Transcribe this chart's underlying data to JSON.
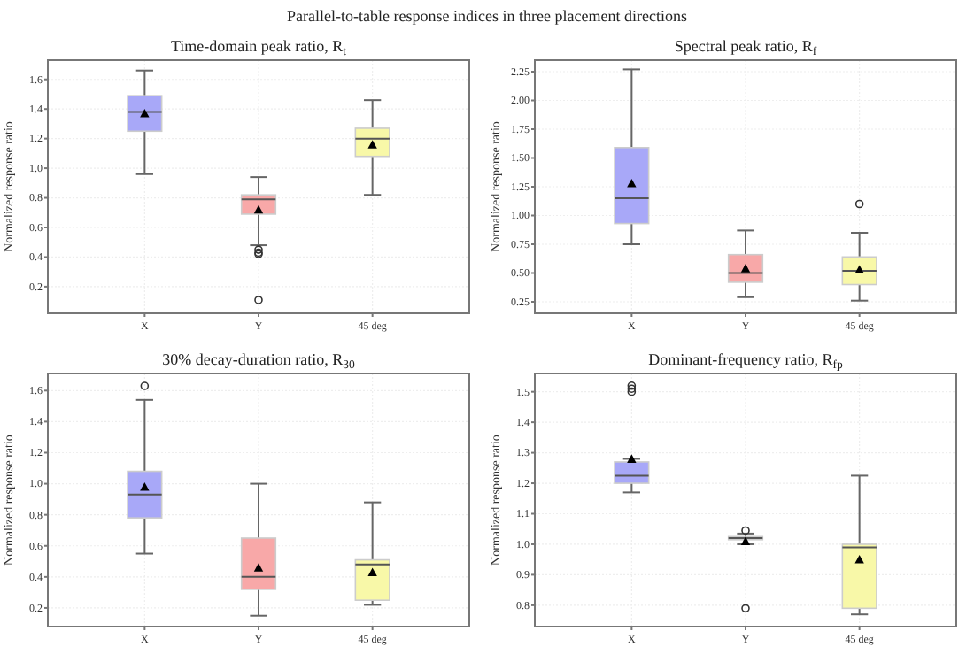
{
  "chart_data": [
    {
      "type": "box",
      "title": "Time-domain peak ratio, R$_{t}$",
      "annotations": [
        "Parallel-to-table response indices in three placement directions"
      ],
      "ylabel": "Normalized response ratio",
      "categories": [
        "X",
        "Y",
        "45 deg"
      ],
      "colors": [
        "#a8a8f8",
        "#f8a8a8",
        "#f8f8a8"
      ],
      "grid": true,
      "ylim": [
        0.02,
        1.73
      ],
      "yticks": [
        0.2,
        0.4,
        0.6,
        0.8,
        {
          "value": 1,
          "label": "1.0"
        },
        1.2,
        1.4,
        1.6
      ],
      "boxes": [
        {
          "low": 0.96,
          "q1": 1.25,
          "median": 1.38,
          "q3": 1.49,
          "high": 1.66,
          "mean": 1.37
        },
        {
          "low": 0.48,
          "q1": 0.69,
          "median": 0.79,
          "q3": 0.82,
          "high": 0.94,
          "mean": 0.72,
          "outliers": [
            0.45,
            0.43,
            0.42,
            0.11
          ]
        },
        {
          "low": 0.82,
          "q1": 1.08,
          "median": 1.2,
          "q3": 1.27,
          "high": 1.46,
          "mean": 1.16
        }
      ]
    },
    {
      "type": "box",
      "title": "Spectral peak ratio, R$_{f}$",
      "ylabel": "Normalized response ratio",
      "categories": [
        "X",
        "Y",
        "45 deg"
      ],
      "colors": [
        "#a8a8f8",
        "#f8a8a8",
        "#f8f8a8"
      ],
      "grid": true,
      "ylim": [
        0.15,
        2.35
      ],
      "yticks": [
        0.25,
        {
          "value": 0.5,
          "label": "0.50"
        },
        0.75,
        {
          "value": 1,
          "label": "1.00"
        },
        1.25,
        {
          "value": 1.5,
          "label": "1.50"
        },
        1.75,
        {
          "value": 2,
          "label": "2.00"
        },
        2.25
      ],
      "boxes": [
        {
          "low": 0.75,
          "q1": 0.93,
          "median": 1.15,
          "q3": 1.59,
          "high": 2.27,
          "mean": 1.28
        },
        {
          "low": 0.29,
          "q1": 0.42,
          "median": 0.5,
          "q3": 0.66,
          "high": 0.87,
          "mean": 0.54
        },
        {
          "low": 0.26,
          "q1": 0.4,
          "median": 0.52,
          "q3": 0.64,
          "high": 0.85,
          "mean": 0.53,
          "outliers": [
            1.1
          ]
        }
      ]
    },
    {
      "type": "box",
      "title": "30% decay-duration ratio, R$_{30}$",
      "ylabel": "Normalized response ratio",
      "categories": [
        "X",
        "Y",
        "45 deg"
      ],
      "colors": [
        "#a8a8f8",
        "#f8a8a8",
        "#f8f8a8"
      ],
      "grid": true,
      "ylim": [
        0.08,
        1.71
      ],
      "yticks": [
        0.2,
        0.4,
        0.6,
        0.8,
        {
          "value": 1,
          "label": "1.0"
        },
        1.2,
        1.4,
        1.6
      ],
      "boxes": [
        {
          "low": 0.55,
          "q1": 0.78,
          "median": 0.93,
          "q3": 1.08,
          "high": 1.54,
          "mean": 0.98,
          "outliers": [
            1.63
          ]
        },
        {
          "low": 0.15,
          "q1": 0.32,
          "median": 0.4,
          "q3": 0.65,
          "high": 1.0,
          "mean": 0.46
        },
        {
          "low": 0.22,
          "q1": 0.25,
          "median": 0.48,
          "q3": 0.51,
          "high": 0.88,
          "mean": 0.43
        }
      ]
    },
    {
      "type": "box",
      "title": "Dominant-frequency ratio, R$_{fp}$",
      "ylabel": "Normalized response ratio",
      "categories": [
        "X",
        "Y",
        "45 deg"
      ],
      "colors": [
        "#a8a8f8",
        "#f8a8a8",
        "#f8f8a8"
      ],
      "grid": true,
      "ylim": [
        0.73,
        1.56
      ],
      "yticks": [
        0.8,
        0.9,
        {
          "value": 1,
          "label": "1.0"
        },
        1.1,
        1.2,
        1.3,
        1.4,
        1.5
      ],
      "boxes": [
        {
          "low": 1.17,
          "q1": 1.2,
          "median": 1.225,
          "q3": 1.27,
          "high": 1.28,
          "mean": 1.28,
          "outliers": [
            1.5,
            1.51,
            1.52
          ]
        },
        {
          "low": 1.0,
          "q1": 1.015,
          "median": 1.02,
          "q3": 1.025,
          "high": 1.035,
          "mean": 1.01,
          "outliers": [
            1.045,
            0.79
          ]
        },
        {
          "low": 0.77,
          "q1": 0.79,
          "median": 0.99,
          "q3": 1.0,
          "high": 1.225,
          "mean": 0.95
        }
      ]
    }
  ]
}
